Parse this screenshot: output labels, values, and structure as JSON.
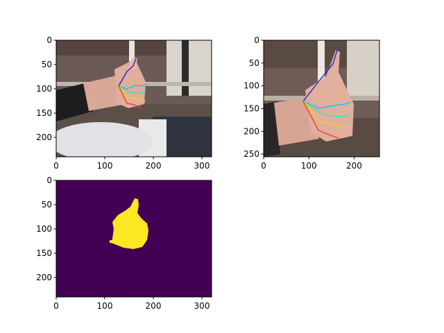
{
  "chart_data": [
    {
      "id": "panel_photo_full",
      "type": "image",
      "content": "photo of a hand making a thumbs-up gesture with a colored keypoint skeleton overlay",
      "x_ticks": [
        0,
        100,
        200,
        300
      ],
      "y_ticks": [
        0,
        50,
        100,
        150,
        200
      ],
      "xlim": [
        0,
        320
      ],
      "ylim": [
        240,
        0
      ]
    },
    {
      "id": "panel_photo_crop",
      "type": "image",
      "content": "cropped close-up of the thumbs-up hand with keypoint skeleton overlay",
      "x_ticks": [
        0,
        100,
        200
      ],
      "y_ticks": [
        0,
        50,
        100,
        150,
        200,
        250
      ],
      "xlim": [
        0,
        256
      ],
      "ylim": [
        256,
        0
      ]
    },
    {
      "id": "panel_mask",
      "type": "heatmap",
      "content": "binary segmentation mask of the hand",
      "x_ticks": [
        0,
        100,
        200,
        300
      ],
      "y_ticks": [
        0,
        50,
        100,
        150,
        200
      ],
      "xlim": [
        0,
        320
      ],
      "ylim": [
        240,
        0
      ],
      "colormap": {
        "background": "#440154",
        "foreground": "#fde725"
      }
    }
  ],
  "colors": {
    "skeleton_thumb": "#2a1fd8",
    "skeleton_index": "#00c8ff",
    "skeleton_middle": "#39e6a6",
    "skeleton_ring": "#f7d21a",
    "skeleton_pinky": "#ff3b1f"
  }
}
